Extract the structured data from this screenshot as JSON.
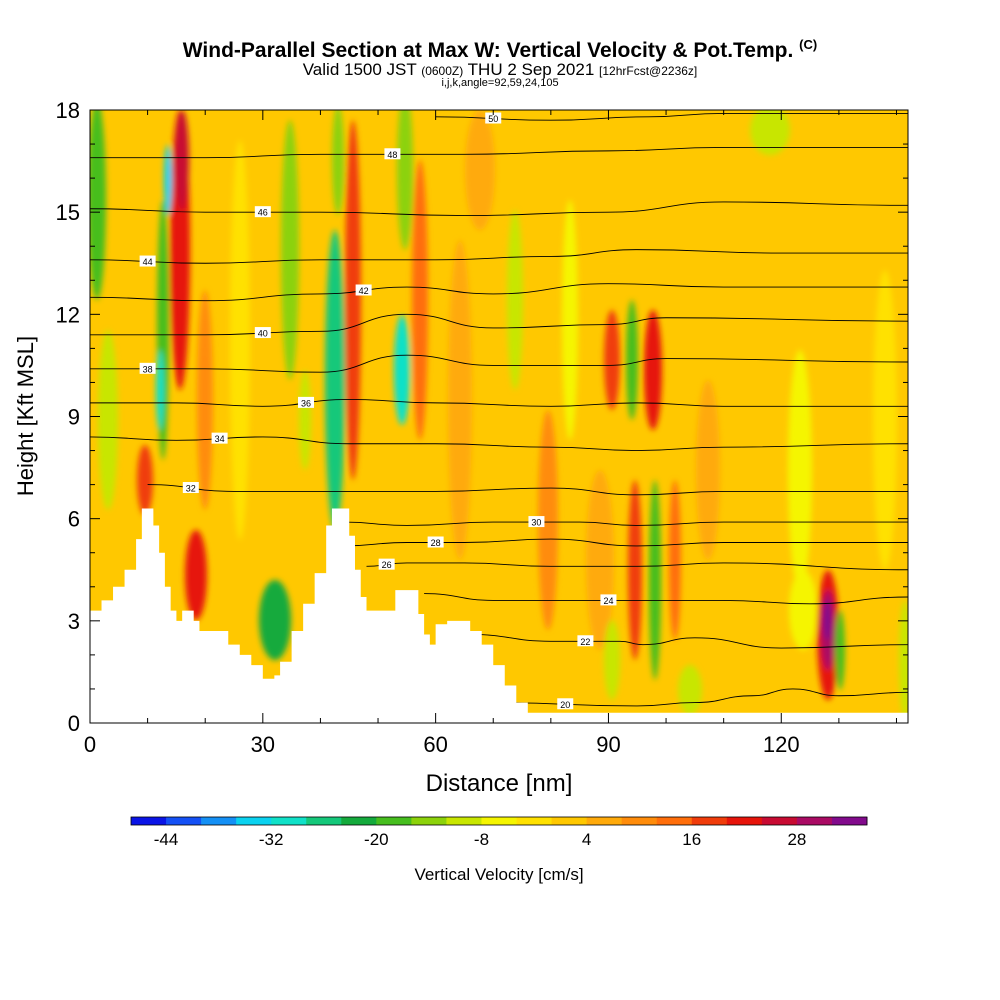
{
  "title": {
    "main": "Wind-Parallel Section at Max W: Vertical Velocity & Pot.Temp.",
    "mark": "(C)",
    "valid_a": "Valid 1500 JST",
    "valid_b": "(0600Z)",
    "valid_c": "THU 2 Sep 2021",
    "valid_d": "[12hrFcst@2236z]",
    "params": "i,j,k,angle=92,59,24,105"
  },
  "chart_data": {
    "type": "heatmap",
    "xlabel": "Distance [nm]",
    "ylabel": "Height [Kft MSL]",
    "xlim": [
      0,
      142
    ],
    "ylim": [
      0,
      18
    ],
    "xticks": [
      0,
      30,
      60,
      90,
      120
    ],
    "yticks": [
      0,
      3,
      6,
      9,
      12,
      15,
      18
    ],
    "terrain": [
      [
        0,
        3.3
      ],
      [
        2,
        3.6
      ],
      [
        4,
        4.0
      ],
      [
        6,
        4.5
      ],
      [
        8,
        5.4
      ],
      [
        9,
        6.3
      ],
      [
        10,
        6.3
      ],
      [
        11,
        5.8
      ],
      [
        12,
        5.0
      ],
      [
        13,
        4.0
      ],
      [
        14,
        3.3
      ],
      [
        15,
        3.0
      ],
      [
        16,
        3.3
      ],
      [
        18,
        3.0
      ],
      [
        19,
        2.7
      ],
      [
        22,
        2.7
      ],
      [
        24,
        2.3
      ],
      [
        26,
        2.0
      ],
      [
        28,
        1.7
      ],
      [
        30,
        1.3
      ],
      [
        32,
        1.4
      ],
      [
        33,
        1.8
      ],
      [
        35,
        2.7
      ],
      [
        37,
        3.5
      ],
      [
        39,
        4.4
      ],
      [
        41,
        5.8
      ],
      [
        42,
        6.3
      ],
      [
        44,
        6.3
      ],
      [
        45,
        5.5
      ],
      [
        46,
        4.5
      ],
      [
        47,
        3.7
      ],
      [
        48,
        3.3
      ],
      [
        52,
        3.3
      ],
      [
        53,
        3.9
      ],
      [
        55,
        3.9
      ],
      [
        57,
        3.2
      ],
      [
        58,
        2.6
      ],
      [
        59,
        2.3
      ],
      [
        60,
        2.9
      ],
      [
        62,
        3.0
      ],
      [
        64,
        3.0
      ],
      [
        66,
        2.7
      ],
      [
        68,
        2.3
      ],
      [
        70,
        1.7
      ],
      [
        72,
        1.1
      ],
      [
        74,
        0.6
      ],
      [
        76,
        0.3
      ],
      [
        142,
        0.3
      ]
    ],
    "theta_contours": [
      {
        "label": "20",
        "pts": [
          [
            70,
            0.6
          ],
          [
            95,
            0.5
          ],
          [
            105,
            0.6
          ],
          [
            115,
            0.8
          ],
          [
            122,
            1.0
          ],
          [
            130,
            0.8
          ],
          [
            142,
            0.9
          ]
        ]
      },
      {
        "label": "22",
        "pts": [
          [
            66,
            2.6
          ],
          [
            80,
            2.4
          ],
          [
            92,
            2.4
          ],
          [
            96,
            2.3
          ],
          [
            105,
            2.5
          ],
          [
            120,
            2.2
          ],
          [
            142,
            2.3
          ]
        ]
      },
      {
        "label": "24",
        "pts": [
          [
            58,
            3.8
          ],
          [
            70,
            3.6
          ],
          [
            85,
            3.6
          ],
          [
            95,
            3.6
          ],
          [
            110,
            3.6
          ],
          [
            125,
            3.5
          ],
          [
            142,
            3.7
          ]
        ]
      },
      {
        "label": "26",
        "pts": [
          [
            48,
            4.6
          ],
          [
            55,
            4.7
          ],
          [
            65,
            4.7
          ],
          [
            80,
            4.6
          ],
          [
            95,
            4.6
          ],
          [
            110,
            4.7
          ],
          [
            142,
            4.5
          ]
        ]
      },
      {
        "label": "28",
        "pts": [
          [
            44,
            5.2
          ],
          [
            55,
            5.3
          ],
          [
            65,
            5.3
          ],
          [
            80,
            5.4
          ],
          [
            95,
            5.2
          ],
          [
            110,
            5.3
          ],
          [
            142,
            5.3
          ]
        ]
      },
      {
        "label": "30",
        "pts": [
          [
            44,
            5.9
          ],
          [
            55,
            5.8
          ],
          [
            70,
            5.9
          ],
          [
            85,
            5.9
          ],
          [
            95,
            5.8
          ],
          [
            110,
            5.9
          ],
          [
            142,
            5.9
          ]
        ]
      },
      {
        "label": "32",
        "pts": [
          [
            10,
            7.0
          ],
          [
            25,
            6.8
          ],
          [
            45,
            6.8
          ],
          [
            60,
            6.8
          ],
          [
            80,
            6.9
          ],
          [
            95,
            6.7
          ],
          [
            110,
            6.8
          ],
          [
            142,
            6.8
          ]
        ]
      },
      {
        "label": "34",
        "pts": [
          [
            0,
            8.4
          ],
          [
            15,
            8.3
          ],
          [
            30,
            8.4
          ],
          [
            45,
            8.2
          ],
          [
            60,
            8.2
          ],
          [
            80,
            8.1
          ],
          [
            95,
            8.0
          ],
          [
            110,
            8.1
          ],
          [
            142,
            8.2
          ]
        ]
      },
      {
        "label": "36",
        "pts": [
          [
            0,
            9.4
          ],
          [
            15,
            9.4
          ],
          [
            30,
            9.3
          ],
          [
            45,
            9.5
          ],
          [
            60,
            9.4
          ],
          [
            80,
            9.3
          ],
          [
            95,
            9.4
          ],
          [
            110,
            9.3
          ],
          [
            142,
            9.3
          ]
        ]
      },
      {
        "label": "38",
        "pts": [
          [
            0,
            10.4
          ],
          [
            20,
            10.4
          ],
          [
            40,
            10.3
          ],
          [
            55,
            10.8
          ],
          [
            70,
            10.5
          ],
          [
            90,
            10.5
          ],
          [
            100,
            10.7
          ],
          [
            142,
            10.6
          ]
        ]
      },
      {
        "label": "40",
        "pts": [
          [
            0,
            11.4
          ],
          [
            20,
            11.4
          ],
          [
            40,
            11.5
          ],
          [
            55,
            12.0
          ],
          [
            70,
            11.6
          ],
          [
            90,
            11.7
          ],
          [
            100,
            11.9
          ],
          [
            142,
            11.8
          ]
        ]
      },
      {
        "label": "42",
        "pts": [
          [
            0,
            12.5
          ],
          [
            20,
            12.4
          ],
          [
            40,
            12.6
          ],
          [
            55,
            12.8
          ],
          [
            70,
            12.6
          ],
          [
            90,
            12.9
          ],
          [
            110,
            12.8
          ],
          [
            142,
            12.8
          ]
        ]
      },
      {
        "label": "44",
        "pts": [
          [
            0,
            13.6
          ],
          [
            20,
            13.5
          ],
          [
            40,
            13.6
          ],
          [
            60,
            13.6
          ],
          [
            80,
            13.7
          ],
          [
            95,
            13.9
          ],
          [
            120,
            13.8
          ],
          [
            142,
            13.8
          ]
        ]
      },
      {
        "label": "46",
        "pts": [
          [
            0,
            15.1
          ],
          [
            20,
            15.0
          ],
          [
            40,
            15.0
          ],
          [
            65,
            14.9
          ],
          [
            90,
            15.0
          ],
          [
            110,
            15.3
          ],
          [
            142,
            15.2
          ]
        ]
      },
      {
        "label": "48",
        "pts": [
          [
            0,
            16.6
          ],
          [
            20,
            16.6
          ],
          [
            40,
            16.7
          ],
          [
            65,
            16.7
          ],
          [
            90,
            16.8
          ],
          [
            110,
            16.9
          ],
          [
            142,
            16.9
          ]
        ]
      },
      {
        "label": "50",
        "pts": [
          [
            60,
            17.8
          ],
          [
            80,
            17.7
          ],
          [
            97,
            17.8
          ],
          [
            110,
            17.9
          ],
          [
            142,
            17.9
          ]
        ]
      }
    ],
    "colorbar": {
      "label": "Vertical Velocity [cm/s]",
      "ticks": [
        -44,
        -32,
        -20,
        -8,
        4,
        16,
        28
      ],
      "min": -48,
      "max": 36,
      "colors": [
        "#0a14e6",
        "#1450f5",
        "#1490f5",
        "#0ad2f0",
        "#10e1c8",
        "#14c87a",
        "#14aa3c",
        "#46be1e",
        "#8cd20a",
        "#c8e600",
        "#f5f500",
        "#ffe100",
        "#ffc800",
        "#ffaa0a",
        "#ff8c0a",
        "#ff6e0a",
        "#f03c0a",
        "#e6140a",
        "#c80a32",
        "#aa0a64",
        "#820a8c"
      ]
    }
  }
}
